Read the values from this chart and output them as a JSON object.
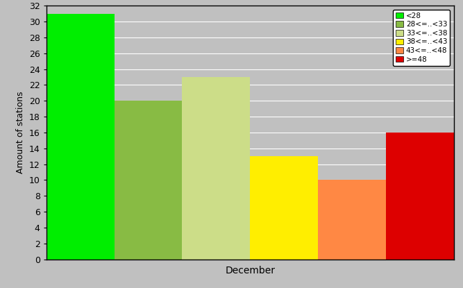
{
  "bars": [
    {
      "label": "<28",
      "value": 31,
      "color": "#00EE00"
    },
    {
      "label": "28<=..<33",
      "value": 20,
      "color": "#88BB44"
    },
    {
      "label": "33<=..<38",
      "value": 23,
      "color": "#CCDD88"
    },
    {
      "label": "38<=..<43",
      "value": 13,
      "color": "#FFEE00"
    },
    {
      "label": "43<=..<48",
      "value": 10,
      "color": "#FF8844"
    },
    {
      "label": ">=48",
      "value": 16,
      "color": "#DD0000"
    }
  ],
  "ylabel": "Amount of stations",
  "xlabel": "December",
  "ylim": [
    0,
    32
  ],
  "yticks": [
    0,
    2,
    4,
    6,
    8,
    10,
    12,
    14,
    16,
    18,
    20,
    22,
    24,
    26,
    28,
    30,
    32
  ],
  "background_color": "#C0C0C0",
  "legend_colors": [
    "#00EE00",
    "#88BB44",
    "#CCDD88",
    "#FFEE00",
    "#FF8844",
    "#DD0000"
  ],
  "legend_labels": [
    "<28",
    "28<=..<33",
    "33<=..<38",
    "38<=..<43",
    "43<=..<48",
    ">=48"
  ],
  "fig_width": 6.67,
  "fig_height": 4.15,
  "dpi": 100
}
